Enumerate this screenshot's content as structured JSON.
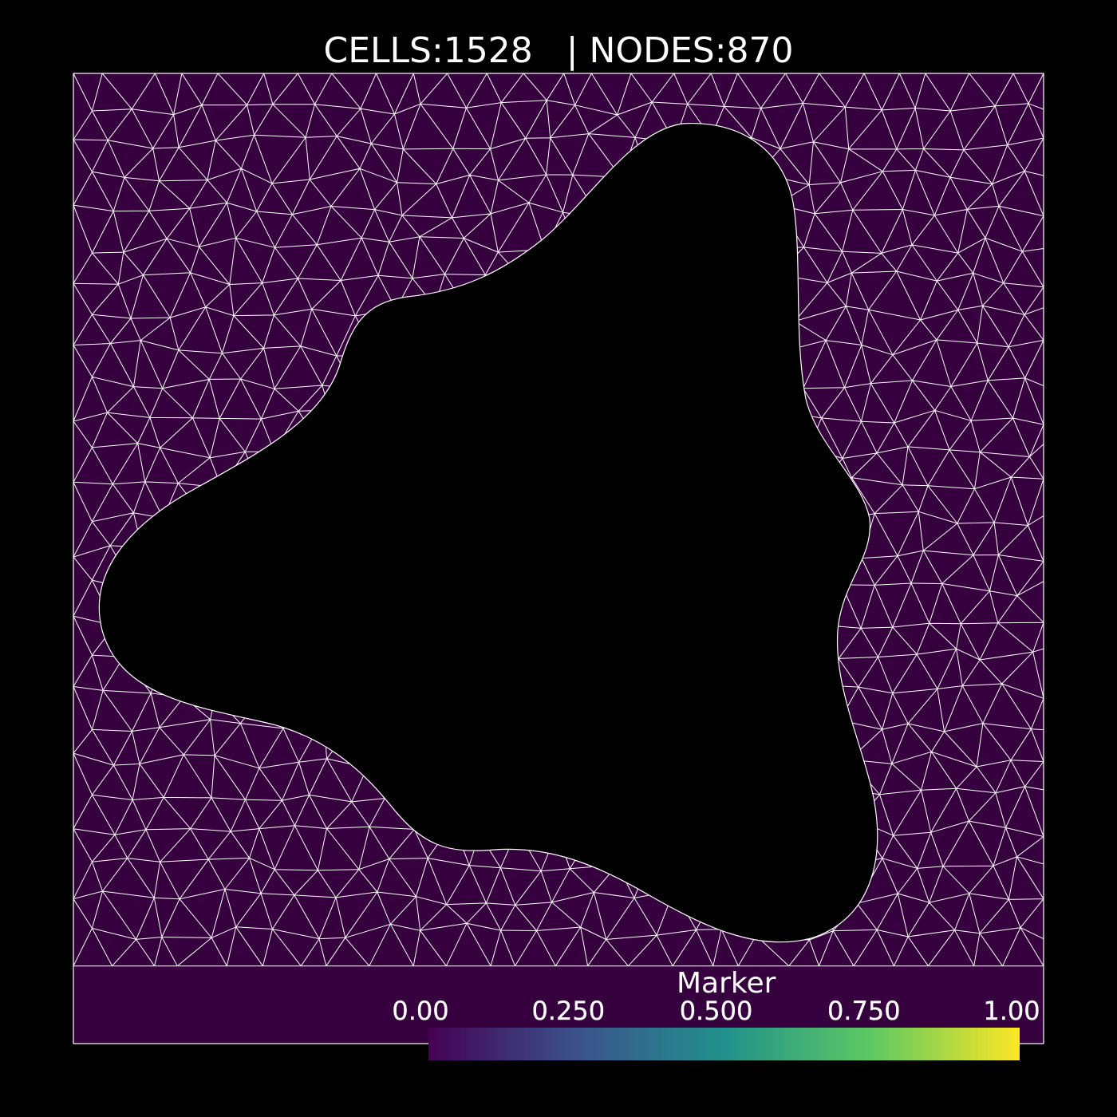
{
  "header": {
    "cells_text": "CELLS:1528",
    "separator": "|",
    "nodes_text": "NODES:870"
  },
  "colors": {
    "background": "#000000",
    "domain_fill": "#35003d",
    "mesh_edges": "#ffffff",
    "hole": "#000000"
  },
  "colorbar": {
    "title": "Marker",
    "colormap": "viridis",
    "ticks": [
      {
        "label": "0.00",
        "value": 0.0
      },
      {
        "label": "0.250",
        "value": 0.25
      },
      {
        "label": "0.500",
        "value": 0.5
      },
      {
        "label": "0.750",
        "value": 0.75
      },
      {
        "label": "1.00",
        "value": 1.0
      }
    ],
    "stops": [
      "#440154",
      "#3b528b",
      "#21918c",
      "#5ec962",
      "#fde725"
    ]
  }
}
